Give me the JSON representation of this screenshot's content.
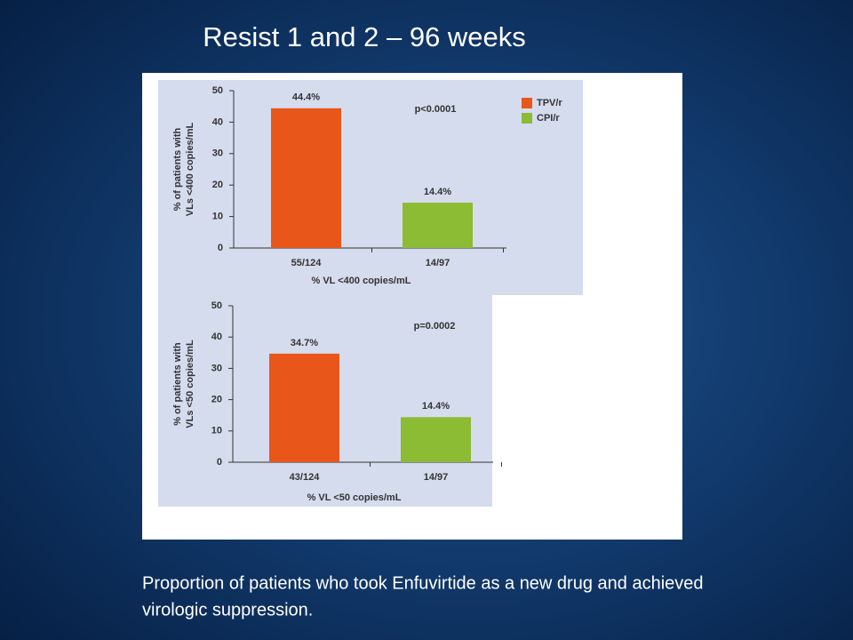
{
  "title": "Resist 1 and 2 – 96 weeks",
  "caption": [
    "Proportion of patients who took Enfuvirtide as a new drug and achieved",
    "virologic suppression."
  ],
  "chart_data": [
    {
      "type": "bar",
      "categories": [
        "55/124",
        "14/97"
      ],
      "values": [
        44.4,
        14.4
      ],
      "value_labels": [
        "44.4%",
        "14.4%"
      ],
      "colors": [
        "#e8561a",
        "#8cbb34"
      ],
      "legend": [
        "TPV/r",
        "CPI/r"
      ],
      "annotation": "p<0.0001",
      "xlabel": "% VL <400 copies/mL",
      "ylabel": [
        "% of patients with",
        "VLs <400 copies/mL"
      ],
      "ylim": [
        0,
        50
      ],
      "yticks": [
        0,
        10,
        20,
        30,
        40,
        50
      ]
    },
    {
      "type": "bar",
      "categories": [
        "43/124",
        "14/97"
      ],
      "values": [
        34.7,
        14.4
      ],
      "value_labels": [
        "34.7%",
        "14.4%"
      ],
      "colors": [
        "#e8561a",
        "#8cbb34"
      ],
      "annotation": "p=0.0002",
      "xlabel": "% VL <50 copies/mL",
      "ylabel": [
        "% of patients with",
        "VLs <50 copies/mL"
      ],
      "ylim": [
        0,
        50
      ],
      "yticks": [
        0,
        10,
        20,
        30,
        40,
        50
      ]
    }
  ]
}
